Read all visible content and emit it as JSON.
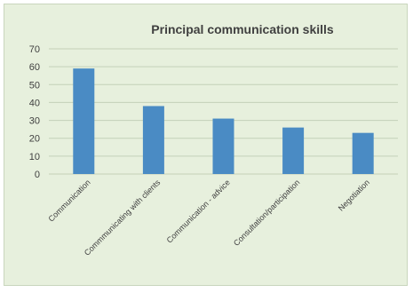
{
  "chart_data": {
    "type": "bar",
    "title": "Principal communication skills",
    "xlabel": "",
    "ylabel": "",
    "categories": [
      "Communication",
      "Commmunicating with clients",
      "Communication - advice",
      "Consultation/participation",
      "Negotiation"
    ],
    "values": [
      59,
      38,
      31,
      26,
      23
    ],
    "ylim": [
      0,
      70
    ],
    "yticks": [
      0,
      10,
      20,
      30,
      40,
      50,
      60,
      70
    ],
    "grid": true,
    "legend": "none",
    "colors": {
      "bar": "#4a8bc4",
      "background": "#e7f0dd",
      "grid": "#c4d1b8",
      "text": "#404040"
    }
  }
}
